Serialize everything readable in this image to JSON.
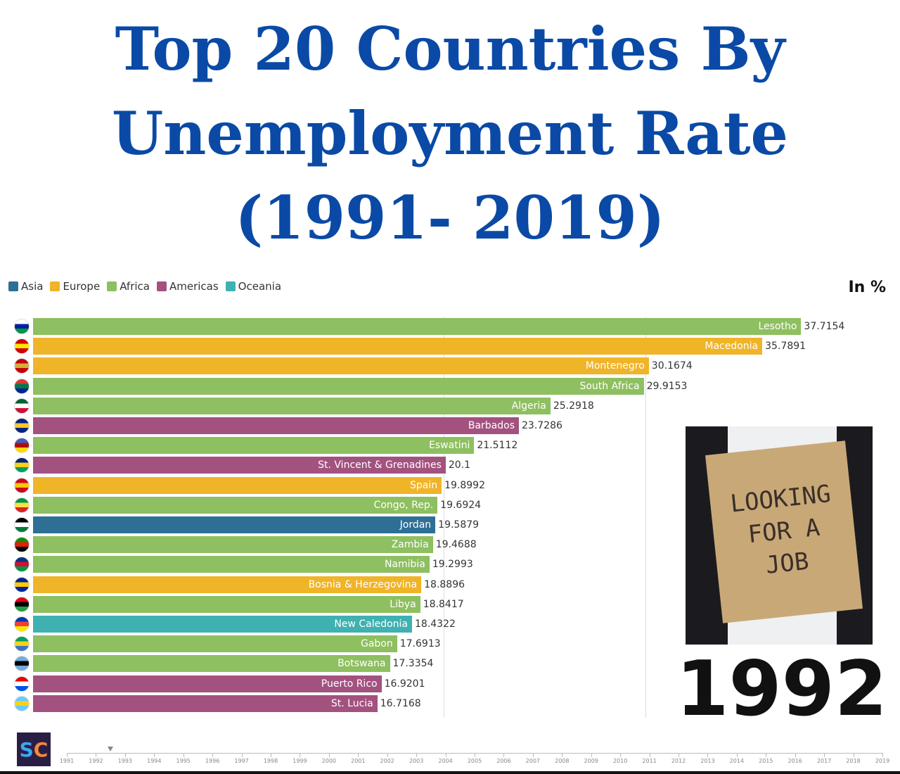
{
  "legend": [
    {
      "name": "Asia",
      "color": "#2e6f95"
    },
    {
      "name": "Europe",
      "color": "#f0b429"
    },
    {
      "name": "Africa",
      "color": "#8ebf60"
    },
    {
      "name": "Americas",
      "color": "#a3527f"
    },
    {
      "name": "Oceania",
      "color": "#3fb1b0"
    }
  ],
  "unit": "In %",
  "title_lines": [
    "Top 20 Countries By",
    "Unemployment Rate",
    "(1991- 2019)"
  ],
  "year": "1992",
  "logo": {
    "s": "S",
    "c": "C"
  },
  "photo_sign": [
    "LOOKING",
    "FOR A",
    "JOB"
  ],
  "chart_data": {
    "type": "bar",
    "orientation": "horizontal",
    "title": "Top 20 Countries By Unemployment Rate (1991- 2019)",
    "unit": "In %",
    "year": "1992",
    "xlim": [
      0,
      38
    ],
    "gridlines": [
      20,
      30
    ],
    "bars": [
      {
        "country": "Lesotho",
        "value": "37.7154",
        "region": "Africa",
        "flag": [
          "#fff",
          "#00209f",
          "#009543"
        ]
      },
      {
        "country": "Macedonia",
        "value": "35.7891",
        "region": "Europe",
        "flag": [
          "#d20000",
          "#ffe600",
          "#d20000"
        ]
      },
      {
        "country": "Montenegro",
        "value": "30.1674",
        "region": "Europe",
        "flag": [
          "#c40308",
          "#d4af3a",
          "#c40308"
        ]
      },
      {
        "country": "South Africa",
        "value": "29.9153",
        "region": "Africa",
        "flag": [
          "#de3831",
          "#007a4d",
          "#002395"
        ]
      },
      {
        "country": "Algeria",
        "value": "25.2918",
        "region": "Africa",
        "flag": [
          "#006233",
          "#fff",
          "#d21034"
        ]
      },
      {
        "country": "Barbados",
        "value": "23.7286",
        "region": "Americas",
        "flag": [
          "#00267f",
          "#ffc726",
          "#00267f"
        ]
      },
      {
        "country": "Eswatini",
        "value": "21.5112",
        "region": "Africa",
        "flag": [
          "#3e5eb9",
          "#b10c0c",
          "#ffd900"
        ]
      },
      {
        "country": "St. Vincent & Grenadines",
        "value": "20.1",
        "region": "Americas",
        "flag": [
          "#002674",
          "#fcd116",
          "#009e60"
        ]
      },
      {
        "country": "Spain",
        "value": "19.8992",
        "region": "Europe",
        "flag": [
          "#c60b1e",
          "#ffc400",
          "#c60b1e"
        ]
      },
      {
        "country": "Congo, Rep.",
        "value": "19.6924",
        "region": "Africa",
        "flag": [
          "#009543",
          "#fbde4a",
          "#dc241f"
        ]
      },
      {
        "country": "Jordan",
        "value": "19.5879",
        "region": "Asia",
        "flag": [
          "#000",
          "#fff",
          "#007a3d"
        ]
      },
      {
        "country": "Zambia",
        "value": "19.4688",
        "region": "Africa",
        "flag": [
          "#198a00",
          "#de2010",
          "#000"
        ]
      },
      {
        "country": "Namibia",
        "value": "19.2993",
        "region": "Africa",
        "flag": [
          "#003580",
          "#d21034",
          "#009543"
        ]
      },
      {
        "country": "Bosnia & Herzegovina",
        "value": "18.8896",
        "region": "Europe",
        "flag": [
          "#002395",
          "#fecb00",
          "#002395"
        ]
      },
      {
        "country": "Libya",
        "value": "18.8417",
        "region": "Africa",
        "flag": [
          "#e70013",
          "#000",
          "#239e46"
        ]
      },
      {
        "country": "New Caledonia",
        "value": "18.4322",
        "region": "Oceania",
        "flag": [
          "#0035ad",
          "#ed4135",
          "#fae600"
        ]
      },
      {
        "country": "Gabon",
        "value": "17.6913",
        "region": "Africa",
        "flag": [
          "#009e60",
          "#fcd116",
          "#3a75c4"
        ]
      },
      {
        "country": "Botswana",
        "value": "17.3354",
        "region": "Africa",
        "flag": [
          "#75aadb",
          "#000",
          "#75aadb"
        ]
      },
      {
        "country": "Puerto Rico",
        "value": "16.9201",
        "region": "Americas",
        "flag": [
          "#ed0000",
          "#fff",
          "#0050f0"
        ]
      },
      {
        "country": "St. Lucia",
        "value": "16.7168",
        "region": "Americas",
        "flag": [
          "#66ccff",
          "#fcd116",
          "#66ccff"
        ]
      }
    ],
    "timeline": {
      "years": [
        "1991",
        "1992",
        "1993",
        "1994",
        "1995",
        "1996",
        "1997",
        "1998",
        "1999",
        "2000",
        "2001",
        "2002",
        "2003",
        "2004",
        "2005",
        "2006",
        "2007",
        "2008",
        "2009",
        "2010",
        "2011",
        "2012",
        "2013",
        "2014",
        "2015",
        "2016",
        "2017",
        "2018",
        "2019"
      ],
      "current": 1992.5
    }
  }
}
